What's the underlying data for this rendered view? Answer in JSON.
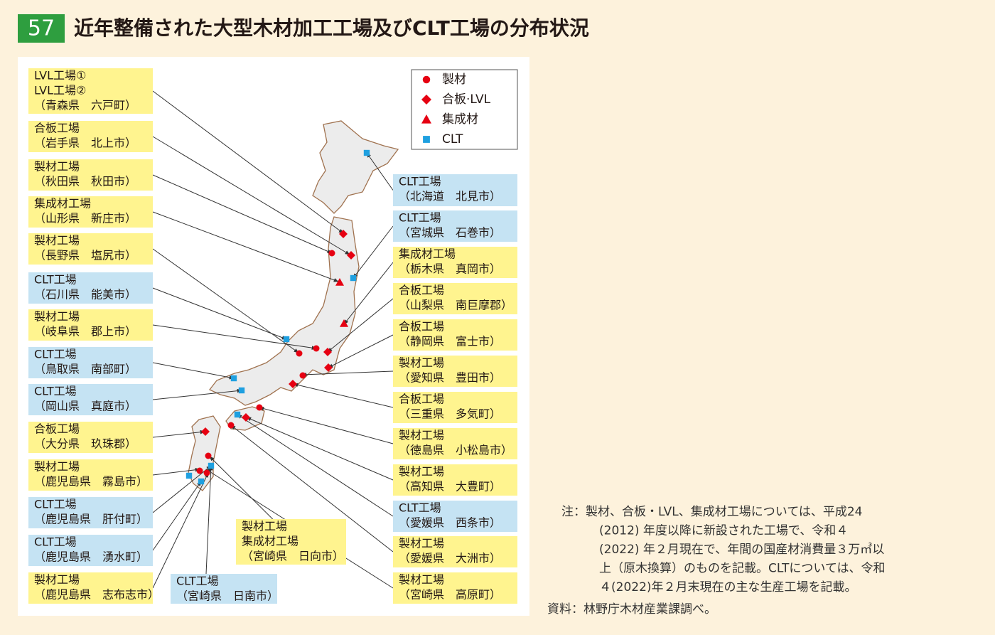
{
  "header": {
    "number": "57",
    "title": "近年整備された大型木材加工工場及びCLT工場の分布状況"
  },
  "legend": [
    {
      "label": "製材",
      "marker": "circle",
      "color": "#e60012"
    },
    {
      "label": "合板·LVL",
      "marker": "diamond",
      "color": "#e60012"
    },
    {
      "label": "集成材",
      "marker": "triangle",
      "color": "#e60012"
    },
    {
      "label": "CLT",
      "marker": "square",
      "color": "#1fa0e0"
    }
  ],
  "labels": [
    {
      "lines": [
        "LVL工場①",
        "LVL工場②",
        "（青森県　六戸町）"
      ],
      "color": "#fff48f"
    },
    {
      "lines": [
        "合板工場",
        "（岩手県　北上市）"
      ],
      "color": "#fff48f"
    },
    {
      "lines": [
        "製材工場",
        "（秋田県　秋田市）"
      ],
      "color": "#fff48f"
    },
    {
      "lines": [
        "集成材工場",
        "（山形県　新庄市）"
      ],
      "color": "#fff48f"
    },
    {
      "lines": [
        "製材工場",
        "（長野県　塩尻市）"
      ],
      "color": "#fff48f"
    },
    {
      "lines": [
        "CLT工場",
        "（石川県　能美市）"
      ],
      "color": "#c5e3f3"
    },
    {
      "lines": [
        "製材工場",
        "（岐阜県　郡上市）"
      ],
      "color": "#fff48f"
    },
    {
      "lines": [
        "CLT工場",
        "（鳥取県　南部町）"
      ],
      "color": "#c5e3f3"
    },
    {
      "lines": [
        "CLT工場",
        "（岡山県　真庭市）"
      ],
      "color": "#c5e3f3"
    },
    {
      "lines": [
        "合板工場",
        "（大分県　玖珠郡）"
      ],
      "color": "#fff48f"
    },
    {
      "lines": [
        "製材工場",
        "（鹿児島県　霧島市）"
      ],
      "color": "#fff48f"
    },
    {
      "lines": [
        "CLT工場",
        "（鹿児島県　肝付町）"
      ],
      "color": "#c5e3f3"
    },
    {
      "lines": [
        "CLT工場",
        "（鹿児島県　湧水町）"
      ],
      "color": "#c5e3f3"
    },
    {
      "lines": [
        "製材工場",
        "（鹿児島県　志布志市）"
      ],
      "color": "#fff48f"
    },
    {
      "lines": [
        "CLT工場",
        "（宮崎県　日南市）"
      ],
      "color": "#c5e3f3"
    },
    {
      "lines": [
        "製材工場",
        "集成材工場",
        "（宮崎県　日向市）"
      ],
      "color": "#fff48f"
    },
    {
      "lines": [
        "CLT工場",
        "（北海道　北見市）"
      ],
      "color": "#c5e3f3"
    },
    {
      "lines": [
        "CLT工場",
        "（宮城県　石巻市）"
      ],
      "color": "#c5e3f3"
    },
    {
      "lines": [
        "集成材工場",
        "（栃木県　真岡市）"
      ],
      "color": "#fff48f"
    },
    {
      "lines": [
        "合板工場",
        "（山梨県　南巨摩郡）"
      ],
      "color": "#fff48f"
    },
    {
      "lines": [
        "合板工場",
        "（静岡県　富士市）"
      ],
      "color": "#fff48f"
    },
    {
      "lines": [
        "製材工場",
        "（愛知県　豊田市）"
      ],
      "color": "#fff48f"
    },
    {
      "lines": [
        "合板工場",
        "（三重県　多気町）"
      ],
      "color": "#fff48f"
    },
    {
      "lines": [
        "製材工場",
        "（徳島県　小松島市）"
      ],
      "color": "#fff48f"
    },
    {
      "lines": [
        "製材工場",
        "（高知県　大豊町）"
      ],
      "color": "#fff48f"
    },
    {
      "lines": [
        "CLT工場",
        "（愛媛県　西条市）"
      ],
      "color": "#c5e3f3"
    },
    {
      "lines": [
        "製材工場",
        "（愛媛県　大洲市）"
      ],
      "color": "#fff48f"
    },
    {
      "lines": [
        "製材工場",
        "（宮崎県　高原町）"
      ],
      "color": "#fff48f"
    }
  ],
  "note": [
    "注：製材、合板・LVL、集成材工場については、平成24",
    "(2012) 年度以降に新設された工場で、令和４",
    "(2022) 年２月現在で、年間の国産材消費量３万㎥以",
    "上（原木換算）のものを記載。CLTについては、令和",
    "４(2022)年２月末現在の主な生産工場を記載。"
  ],
  "source": "資料：林野庁木材産業課調べ。"
}
